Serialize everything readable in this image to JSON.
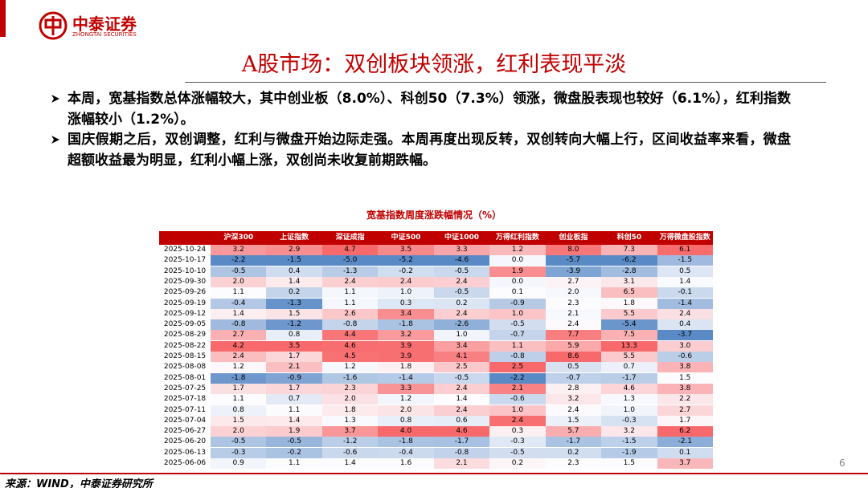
{
  "header": {
    "company": "中泰证券",
    "company_en": "ZHONGTAI SECURITIES"
  },
  "title": "A股市场：双创板块领涨，红利表现平淡",
  "bullets": [
    "本周，宽基指数总体涨幅较大，其中创业板（8.0%）、科创50（7.3%）领涨，微盘股表现也较好（6.1%），红利指数涨幅较小（1.2%）。",
    "国庆假期之后，双创调整，红利与微盘开始边际走强。本周再度出现反转，双创转向大幅上行，区间收益率来看，微盘超额收益最为明显，红利小幅上涨，双创尚未收复前期跌幅。"
  ],
  "table": {
    "title": "宽基指数周度涨跌幅情况（%）",
    "columns": [
      "沪深300",
      "上证指数",
      "深证成指",
      "中证500",
      "中证1000",
      "万得红利指数",
      "创业板指",
      "科创50",
      "万得微盘股指数"
    ],
    "rows": [
      {
        "date": "2025-10-24",
        "values": [
          "3.2",
          "2.9",
          "4.7",
          "3.5",
          "3.3",
          "1.2",
          "8.0",
          "7.3",
          "6.1"
        ]
      },
      {
        "date": "2025-10-17",
        "values": [
          "-2.2",
          "-1.5",
          "-5.0",
          "-5.2",
          "-4.6",
          "0.0",
          "-5.7",
          "-6.2",
          "-1.5"
        ]
      },
      {
        "date": "2025-10-10",
        "values": [
          "-0.5",
          "0.4",
          "-1.3",
          "-0.2",
          "-0.5",
          "1.9",
          "-3.9",
          "-2.8",
          "0.5"
        ]
      },
      {
        "date": "2025-09-30",
        "values": [
          "2.0",
          "1.4",
          "2.4",
          "2.4",
          "2.4",
          "0.0",
          "2.7",
          "3.1",
          "1.4"
        ]
      },
      {
        "date": "2025-09-26",
        "values": [
          "1.1",
          "0.2",
          "1.1",
          "1.0",
          "-0.5",
          "0.1",
          "2.0",
          "6.5",
          "-0.1"
        ]
      },
      {
        "date": "2025-09-19",
        "values": [
          "-0.4",
          "-1.3",
          "1.1",
          "0.3",
          "0.2",
          "-0.9",
          "2.3",
          "1.8",
          "-1.4"
        ]
      },
      {
        "date": "2025-09-12",
        "values": [
          "1.4",
          "1.5",
          "2.6",
          "3.4",
          "2.4",
          "1.0",
          "2.1",
          "5.5",
          "2.4"
        ]
      },
      {
        "date": "2025-09-05",
        "values": [
          "-0.8",
          "-1.2",
          "-0.8",
          "-1.8",
          "-2.6",
          "-0.5",
          "2.4",
          "-5.4",
          "0.4"
        ]
      },
      {
        "date": "2025-08-29",
        "values": [
          "2.7",
          "0.8",
          "4.4",
          "3.2",
          "1.0",
          "-0.7",
          "7.7",
          "7.5",
          "-3.7"
        ]
      },
      {
        "date": "2025-08-22",
        "values": [
          "4.2",
          "3.5",
          "4.6",
          "3.9",
          "3.4",
          "1.1",
          "5.9",
          "13.3",
          "3.0"
        ]
      },
      {
        "date": "2025-08-15",
        "values": [
          "2.4",
          "1.7",
          "4.5",
          "3.9",
          "4.1",
          "-0.8",
          "8.6",
          "5.5",
          "-0.6"
        ]
      },
      {
        "date": "2025-08-08",
        "values": [
          "1.2",
          "2.1",
          "1.2",
          "1.8",
          "2.5",
          "2.5",
          "0.5",
          "0.7",
          "3.8"
        ]
      },
      {
        "date": "2025-08-01",
        "values": [
          "-1.8",
          "-0.9",
          "-1.6",
          "-1.4",
          "-0.5",
          "-2.2",
          "-0.7",
          "-1.7",
          "1.5"
        ]
      },
      {
        "date": "2025-07-25",
        "values": [
          "1.7",
          "1.7",
          "2.3",
          "3.3",
          "2.4",
          "2.1",
          "2.8",
          "4.6",
          "3.8"
        ]
      },
      {
        "date": "2025-07-18",
        "values": [
          "1.1",
          "0.7",
          "2.0",
          "1.2",
          "1.4",
          "-0.6",
          "3.2",
          "1.3",
          "2.2"
        ]
      },
      {
        "date": "2025-07-11",
        "values": [
          "0.8",
          "1.1",
          "1.8",
          "2.0",
          "2.4",
          "1.0",
          "2.4",
          "1.0",
          "2.7"
        ]
      },
      {
        "date": "2025-07-04",
        "values": [
          "1.5",
          "1.4",
          "1.3",
          "0.8",
          "0.6",
          "2.4",
          "1.5",
          "-0.3",
          "1.7"
        ]
      },
      {
        "date": "2025-06-27",
        "values": [
          "2.0",
          "1.9",
          "3.7",
          "4.0",
          "4.6",
          "0.3",
          "5.7",
          "3.2",
          "6.2"
        ]
      },
      {
        "date": "2025-06-20",
        "values": [
          "-0.5",
          "-0.5",
          "-1.2",
          "-1.8",
          "-1.7",
          "-0.3",
          "-1.7",
          "-1.5",
          "-2.1"
        ]
      },
      {
        "date": "2025-06-13",
        "values": [
          "-0.3",
          "-0.2",
          "-0.6",
          "-0.4",
          "-0.8",
          "-0.5",
          "0.2",
          "-1.9",
          "0.1"
        ]
      },
      {
        "date": "2025-06-06",
        "values": [
          "0.9",
          "1.1",
          "1.4",
          "1.6",
          "2.1",
          "0.2",
          "2.3",
          "1.5",
          "3.7"
        ]
      }
    ]
  },
  "source": "来源：WIND，中泰证券研究所",
  "page_number": "6"
}
